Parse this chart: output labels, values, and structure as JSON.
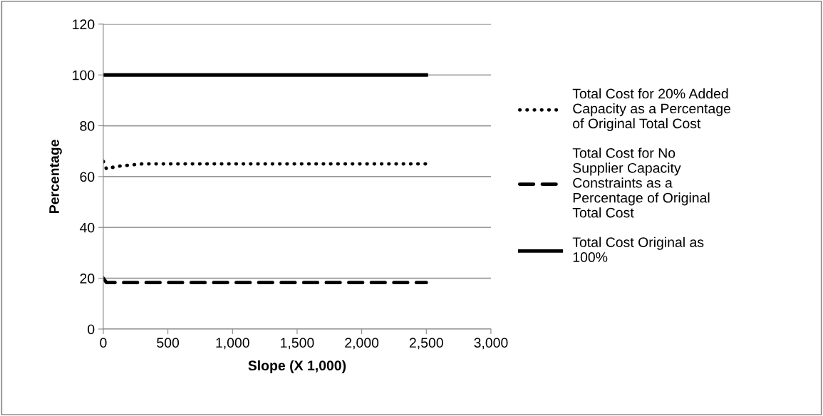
{
  "chart_data": {
    "type": "line",
    "xlabel": "Slope (X 1,000)",
    "ylabel": "Percentage",
    "xlim": [
      0,
      3000
    ],
    "xticks": [
      0,
      {
        "value": 500,
        "label": "500"
      },
      {
        "value": 1000,
        "label": "1,000"
      },
      {
        "value": 1500,
        "label": "1,500"
      },
      {
        "value": 2000,
        "label": "2,000"
      },
      {
        "value": 2500,
        "label": "2,500"
      },
      {
        "value": 3000,
        "label": "3,000"
      }
    ],
    "ylim": [
      0,
      120
    ],
    "yticks": [
      0,
      20,
      40,
      60,
      80,
      100,
      120
    ],
    "grid": "y",
    "legend": "right",
    "marker": "none",
    "series": [
      {
        "name": "Total Cost for 20% Added Capacity as a Percentage of Original Total Cost",
        "color": "#000000",
        "line_style": "dotted",
        "x": [
          0,
          25,
          100,
          300,
          1000,
          2500
        ],
        "values": [
          66,
          63,
          64,
          65,
          65,
          65
        ]
      },
      {
        "name": "Total Cost for No Supplier Capacity Constraints as a Percentage of Original Total Cost",
        "color": "#000000",
        "line_style": "dashed",
        "x": [
          0,
          25,
          1000,
          2500
        ],
        "values": [
          20,
          18.3,
          18.3,
          18.3
        ]
      },
      {
        "name": "Total Cost Original as 100%",
        "color": "#000000",
        "line_style": "solid",
        "x": [
          0,
          2500
        ],
        "values": [
          100,
          100
        ]
      }
    ]
  }
}
